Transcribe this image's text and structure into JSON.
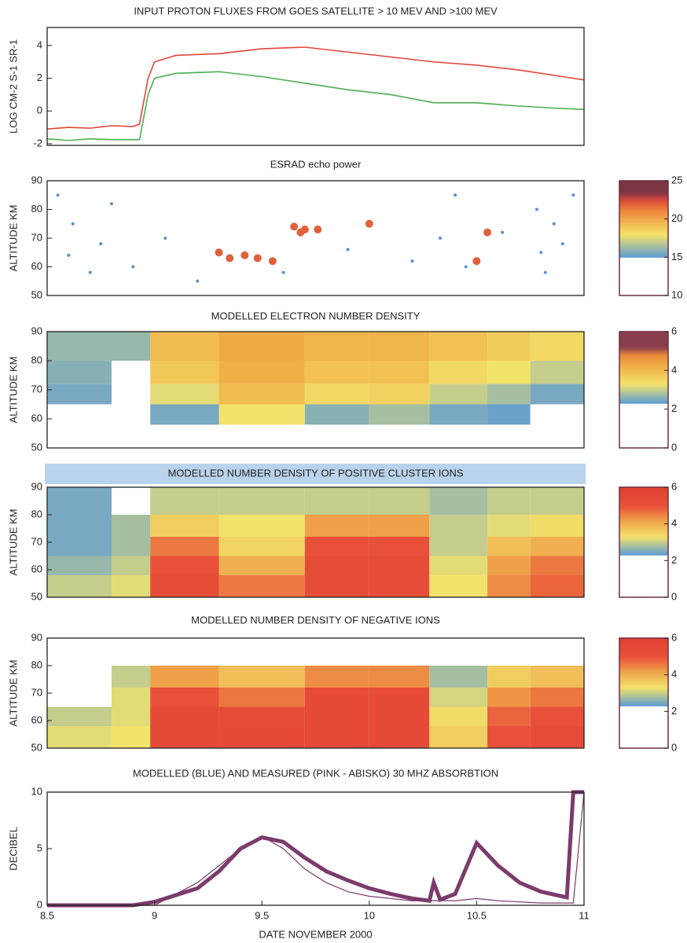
{
  "chart_data": [
    {
      "type": "line",
      "title": "INPUT PROTON FLUXES FROM GOES SATELLITE > 10 MEV AND >100 MEV",
      "y_label": "LOG CM-2 S-1 SR-1",
      "xlim": [
        8.5,
        11
      ],
      "ylim": [
        -2.1,
        5.1
      ],
      "yticks": [
        -2,
        0,
        2,
        4
      ],
      "series": [
        {
          "color": "#e0463a",
          "x": [
            8.5,
            8.6,
            8.7,
            8.8,
            8.9,
            8.93,
            8.97,
            9.0,
            9.1,
            9.3,
            9.5,
            9.7,
            9.9,
            10.1,
            10.3,
            10.5,
            10.7,
            10.9,
            11.0
          ],
          "values": [
            -1.1,
            -1.0,
            -1.05,
            -0.9,
            -0.95,
            -0.8,
            2.0,
            3.0,
            3.4,
            3.5,
            3.8,
            3.9,
            3.6,
            3.3,
            3.0,
            2.8,
            2.5,
            2.1,
            1.9
          ]
        },
        {
          "color": "#4caf50",
          "x": [
            8.5,
            8.6,
            8.7,
            8.8,
            8.93,
            8.97,
            9.0,
            9.1,
            9.3,
            9.5,
            9.7,
            9.9,
            10.1,
            10.3,
            10.5,
            10.7,
            10.9,
            11.0
          ],
          "values": [
            -1.7,
            -1.8,
            -1.7,
            -1.75,
            -1.75,
            1.0,
            2.0,
            2.3,
            2.4,
            2.1,
            1.7,
            1.3,
            1.0,
            0.5,
            0.5,
            0.3,
            0.15,
            0.1
          ]
        }
      ]
    },
    {
      "type": "scatter",
      "title": "ESRAD echo power",
      "y_label": "ALTITUDE  KM",
      "xlim": [
        8.5,
        11
      ],
      "ylim": [
        50,
        90
      ],
      "yticks": [
        50,
        60,
        70,
        80,
        90
      ],
      "clim": [
        10,
        25
      ],
      "colorbar_ticks": [
        10,
        15,
        20,
        25
      ],
      "colormap": [
        {
          "value": 15,
          "color": "#5b9bd5"
        },
        {
          "value": 18,
          "color": "#f5e46a"
        },
        {
          "value": 21,
          "color": "#ef8a3c"
        },
        {
          "value": 22.5,
          "color": "#d94a3a"
        },
        {
          "value": 23.5,
          "color": "#7b3543"
        }
      ],
      "point_groups": [
        {
          "color": "#e0603a",
          "x": [
            9.3,
            9.35,
            9.42,
            9.48,
            9.55,
            9.65,
            9.7,
            9.76,
            9.68,
            10.0,
            10.5,
            10.55
          ],
          "y": [
            65,
            63,
            64,
            63,
            62,
            74,
            73,
            73,
            72,
            75,
            62,
            72
          ]
        },
        {
          "color": "#5b8fd0",
          "x": [
            8.55,
            8.6,
            8.62,
            8.7,
            8.75,
            8.8,
            8.9,
            9.05,
            9.2,
            9.6,
            9.9,
            10.2,
            10.33,
            10.4,
            10.45,
            10.62,
            10.78,
            10.8,
            10.82,
            10.86,
            10.9,
            10.95
          ],
          "y": [
            85,
            64,
            75,
            58,
            68,
            82,
            60,
            70,
            55,
            58,
            66,
            62,
            70,
            85,
            60,
            72,
            80,
            65,
            58,
            75,
            68,
            85
          ]
        }
      ]
    },
    {
      "type": "heatmap",
      "title": "MODELLED ELECTRON NUMBER DENSITY",
      "y_label": "ALTITUDE  KM",
      "xlim": [
        8.5,
        11
      ],
      "ylim": [
        50,
        90
      ],
      "yticks": [
        50,
        60,
        70,
        80,
        90
      ],
      "clim": [
        0,
        6
      ],
      "colorbar_ticks": [
        0,
        2,
        4,
        6
      ],
      "colormap": [
        {
          "value": 2.3,
          "color": "#5b9bd5"
        },
        {
          "value": 3.3,
          "color": "#f2e36c"
        },
        {
          "value": 4.2,
          "color": "#f0b048"
        },
        {
          "value": 4.8,
          "color": "#e88a3a"
        },
        {
          "value": 5.2,
          "color": "#8a3e4c"
        }
      ],
      "x_edges": [
        8.5,
        8.8,
        8.98,
        9.3,
        9.7,
        10.0,
        10.28,
        10.55,
        10.75,
        11.0
      ],
      "y_edges": [
        50,
        58,
        65,
        72,
        80,
        90
      ],
      "z": [
        [
          0,
          0,
          2.5,
          2.6,
          2.7
        ],
        [
          0,
          0,
          0,
          0,
          2.7
        ],
        [
          0,
          2.5,
          3.2,
          3.8,
          4.0
        ],
        [
          0,
          3.3,
          4.0,
          4.2,
          4.3
        ],
        [
          0,
          2.6,
          3.5,
          3.9,
          4.1
        ],
        [
          0,
          2.8,
          3.6,
          3.9,
          4.1
        ],
        [
          0,
          2.5,
          3.0,
          3.5,
          3.9
        ],
        [
          0,
          2.4,
          2.8,
          3.3,
          3.7
        ],
        [
          0,
          0,
          2.5,
          3.0,
          3.5
        ]
      ]
    },
    {
      "type": "heatmap",
      "title": "MODELLED NUMBER DENSITY OF POSITIVE CLUSTER IONS",
      "y_label": "ALTITUDE  KM",
      "xlim": [
        8.5,
        11
      ],
      "ylim": [
        50,
        90
      ],
      "yticks": [
        50,
        60,
        70,
        80,
        90
      ],
      "clim": [
        0,
        6
      ],
      "colorbar_ticks": [
        0,
        2,
        4,
        6
      ],
      "colormap": [
        {
          "value": 2.3,
          "color": "#5b9bd5"
        },
        {
          "value": 3.3,
          "color": "#f2e36c"
        },
        {
          "value": 4.2,
          "color": "#f0a048"
        },
        {
          "value": 5.0,
          "color": "#e8503a"
        },
        {
          "value": 6,
          "color": "#e04030"
        }
      ],
      "x_edges": [
        8.5,
        8.8,
        8.98,
        9.3,
        9.7,
        10.0,
        10.28,
        10.55,
        10.75,
        11.0
      ],
      "y_edges": [
        50,
        58,
        65,
        72,
        80,
        90
      ],
      "z": [
        [
          3.0,
          2.7,
          2.5,
          2.5,
          2.5
        ],
        [
          3.2,
          3.0,
          2.8,
          2.8,
          0
        ],
        [
          5.2,
          5.0,
          4.6,
          3.6,
          3.0
        ],
        [
          4.6,
          4.0,
          3.5,
          3.3,
          3.0
        ],
        [
          5.2,
          5.2,
          5.0,
          4.2,
          3.0
        ],
        [
          5.2,
          5.2,
          5.0,
          4.2,
          3.0
        ],
        [
          3.3,
          3.2,
          3.0,
          3.0,
          2.8
        ],
        [
          4.4,
          4.2,
          3.8,
          3.2,
          3.0
        ],
        [
          4.8,
          4.6,
          4.0,
          3.4,
          3.0
        ]
      ]
    },
    {
      "type": "heatmap",
      "title": "MODELLED NUMBER DENSITY OF NEGATIVE IONS",
      "y_label": "ALTITUDE  KM",
      "xlim": [
        8.5,
        11
      ],
      "ylim": [
        50,
        90
      ],
      "yticks": [
        50,
        60,
        70,
        80,
        90
      ],
      "clim": [
        0,
        6
      ],
      "colorbar_ticks": [
        0,
        2,
        4,
        6
      ],
      "colormap": [
        {
          "value": 2.3,
          "color": "#5b9bd5"
        },
        {
          "value": 3.3,
          "color": "#f2e36c"
        },
        {
          "value": 4.2,
          "color": "#f0a048"
        },
        {
          "value": 5.0,
          "color": "#e8503a"
        },
        {
          "value": 6,
          "color": "#e04030"
        }
      ],
      "x_edges": [
        8.5,
        8.8,
        8.98,
        9.3,
        9.7,
        10.0,
        10.28,
        10.55,
        10.75,
        11.0
      ],
      "y_edges": [
        50,
        58,
        65,
        72,
        80,
        90
      ],
      "z": [
        [
          3.2,
          3.0,
          0,
          0,
          0
        ],
        [
          3.3,
          3.2,
          3.2,
          3.0,
          0
        ],
        [
          5.3,
          5.3,
          5.0,
          4.2,
          0
        ],
        [
          5.3,
          5.2,
          4.6,
          3.8,
          0
        ],
        [
          5.3,
          5.3,
          5.3,
          4.4,
          0
        ],
        [
          5.3,
          5.3,
          5.3,
          4.4,
          0
        ],
        [
          3.6,
          3.4,
          3.1,
          2.8,
          0
        ],
        [
          5.0,
          4.8,
          4.3,
          3.6,
          0
        ],
        [
          5.2,
          5.0,
          4.6,
          3.8,
          0
        ]
      ]
    },
    {
      "type": "line",
      "title": "MODELLED (BLUE) AND MEASURED (PINK - ABISKO) 30 MHZ ABSORBTION",
      "y_label": "DECIBEL",
      "x_label": "DATE NOVEMBER 2000",
      "xlim": [
        8.5,
        11
      ],
      "ylim": [
        0,
        10
      ],
      "yticks": [
        0,
        5,
        10
      ],
      "xticks": [
        8.5,
        9,
        9.5,
        10,
        10.5,
        11
      ],
      "series": [
        {
          "color": "#7b3b6b",
          "width": 5,
          "x": [
            8.5,
            8.9,
            9.0,
            9.2,
            9.3,
            9.4,
            9.5,
            9.6,
            9.7,
            9.8,
            9.9,
            10.0,
            10.1,
            10.2,
            10.28,
            10.3,
            10.33,
            10.4,
            10.5,
            10.6,
            10.7,
            10.8,
            10.92,
            10.95,
            11.0
          ],
          "values": [
            0,
            0,
            0.3,
            1.5,
            3.0,
            5.0,
            6.0,
            5.6,
            4.2,
            3.0,
            2.2,
            1.5,
            1.0,
            0.6,
            0.4,
            2.0,
            0.5,
            1.0,
            5.5,
            3.5,
            2.0,
            1.2,
            0.7,
            10,
            10
          ]
        },
        {
          "color": "#7b3b6b",
          "width": 1.2,
          "x": [
            8.5,
            9.0,
            9.2,
            9.4,
            9.5,
            9.6,
            9.7,
            9.8,
            9.9,
            10.0,
            10.2,
            10.4,
            10.5,
            10.6,
            10.8,
            10.95,
            11.0
          ],
          "values": [
            0,
            0,
            2.0,
            5.0,
            6.1,
            5.0,
            3.2,
            2.0,
            1.2,
            0.8,
            0.4,
            0.4,
            0.6,
            0.4,
            0.2,
            0.2,
            10
          ]
        }
      ]
    }
  ]
}
